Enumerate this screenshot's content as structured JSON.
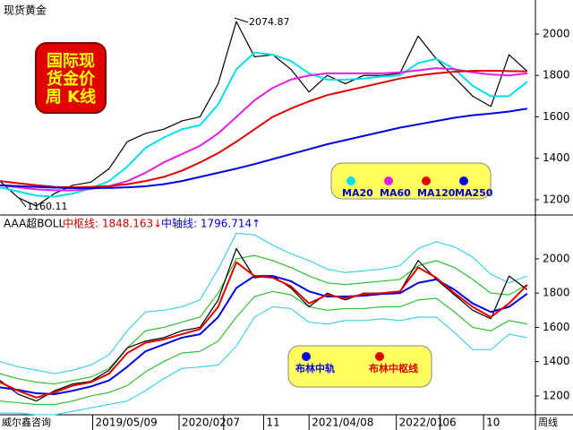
{
  "chart_data": [
    {
      "type": "line",
      "title": "现货黄金",
      "badge": [
        "国际现",
        "货金价",
        "周 K线"
      ],
      "annotations": [
        "2074.87",
        "1160.11"
      ],
      "xlim": [
        0,
        29.45
      ],
      "ylim": [
        1135,
        2121
      ],
      "yticks": [
        1200,
        1400,
        1600,
        1800,
        2000
      ],
      "series": [
        {
          "color": "#000000",
          "values": [
            1290,
            1210,
            1170,
            1230,
            1270,
            1285,
            1350,
            1480,
            1520,
            1540,
            1580,
            1600,
            1760,
            2060,
            1890,
            1900,
            1830,
            1720,
            1800,
            1760,
            1800,
            1800,
            1810,
            1990,
            1880,
            1790,
            1700,
            1650,
            1900,
            1820
          ]
        },
        {
          "name": "MA20",
          "color": "#00e0f0",
          "values": [
            1260,
            1240,
            1220,
            1215,
            1230,
            1255,
            1290,
            1360,
            1450,
            1500,
            1540,
            1560,
            1660,
            1830,
            1910,
            1900,
            1870,
            1810,
            1780,
            1780,
            1785,
            1795,
            1800,
            1860,
            1880,
            1830,
            1750,
            1700,
            1700,
            1770
          ]
        },
        {
          "name": "MA60",
          "color": "#e020e0",
          "values": [
            1270,
            1260,
            1250,
            1246,
            1245,
            1252,
            1265,
            1290,
            1330,
            1380,
            1420,
            1460,
            1520,
            1600,
            1680,
            1740,
            1780,
            1800,
            1810,
            1810,
            1810,
            1810,
            1815,
            1825,
            1835,
            1830,
            1815,
            1805,
            1800,
            1810
          ]
        },
        {
          "name": "MA120",
          "color": "#e00000",
          "values": [
            1290,
            1280,
            1270,
            1262,
            1260,
            1262,
            1266,
            1275,
            1290,
            1310,
            1340,
            1380,
            1425,
            1480,
            1540,
            1600,
            1640,
            1675,
            1705,
            1725,
            1745,
            1765,
            1785,
            1800,
            1810,
            1818,
            1822,
            1823,
            1821,
            1820
          ]
        },
        {
          "name": "MA250",
          "color": "#0000e0",
          "values": [
            1270,
            1266,
            1262,
            1258,
            1256,
            1256,
            1257,
            1260,
            1265,
            1275,
            1290,
            1310,
            1330,
            1350,
            1372,
            1396,
            1420,
            1444,
            1468,
            1488,
            1508,
            1528,
            1548,
            1564,
            1580,
            1596,
            1608,
            1616,
            1626,
            1640
          ]
        }
      ]
    },
    {
      "type": "line",
      "title": "AAA超BOLL",
      "headers": [
        "中枢线: 1848.163↓",
        "中轴线: 1796.714↑"
      ],
      "annotations": [
        "威尔鑫咨询",
        "周线"
      ],
      "xlim": [
        0,
        29.45
      ],
      "ylim": [
        1095,
        2162
      ],
      "yticks": [
        1200,
        1400,
        1600,
        1800,
        2000
      ],
      "xticks": [
        {
          "value": 5.1,
          "label": "2019/05/09"
        },
        {
          "value": 9.85,
          "label": "2020/02"
        },
        {
          "value": 12.3,
          "label": "07"
        },
        {
          "value": 14.5,
          "label": "11"
        },
        {
          "value": 17,
          "label": "2021/04/08"
        },
        {
          "value": 21.8,
          "label": "2022/01"
        },
        {
          "value": 24.2,
          "label": "06"
        },
        {
          "value": 26.6,
          "label": "10"
        }
      ],
      "series": [
        {
          "color": "#40d0f0",
          "values": [
            1400,
            1370,
            1350,
            1330,
            1350,
            1380,
            1440,
            1580,
            1690,
            1700,
            1720,
            1760,
            1940,
            2150,
            2140,
            2080,
            2030,
            1990,
            1940,
            1920,
            1930,
            1940,
            1960,
            2060,
            2100,
            2070,
            2010,
            1910,
            1860,
            1900
          ]
        },
        {
          "color": "#40d0f0",
          "values": [
            1100,
            1100,
            1090,
            1090,
            1110,
            1130,
            1150,
            1170,
            1230,
            1300,
            1360,
            1370,
            1380,
            1490,
            1660,
            1720,
            1710,
            1630,
            1620,
            1640,
            1640,
            1650,
            1640,
            1660,
            1660,
            1570,
            1470,
            1470,
            1560,
            1540
          ]
        },
        {
          "color": "#30c030",
          "values": [
            1330,
            1300,
            1280,
            1270,
            1290,
            1310,
            1360,
            1480,
            1580,
            1600,
            1630,
            1660,
            1800,
            2000,
            2020,
            1990,
            1950,
            1900,
            1860,
            1850,
            1860,
            1870,
            1880,
            1960,
            1990,
            1950,
            1880,
            1800,
            1790,
            1850
          ]
        },
        {
          "color": "#30c030",
          "values": [
            1170,
            1160,
            1150,
            1150,
            1170,
            1200,
            1220,
            1260,
            1340,
            1400,
            1450,
            1460,
            1520,
            1660,
            1780,
            1810,
            1790,
            1720,
            1700,
            1710,
            1710,
            1720,
            1720,
            1760,
            1770,
            1690,
            1600,
            1580,
            1640,
            1620
          ]
        },
        {
          "color": "#000000",
          "values": [
            1290,
            1210,
            1170,
            1230,
            1270,
            1285,
            1350,
            1480,
            1520,
            1540,
            1580,
            1600,
            1760,
            2060,
            1890,
            1900,
            1830,
            1720,
            1800,
            1760,
            1800,
            1800,
            1810,
            1990,
            1880,
            1790,
            1700,
            1650,
            1900,
            1820
          ]
        },
        {
          "name": "布林中轨",
          "color": "#0000e0",
          "values": [
            1250,
            1235,
            1215,
            1210,
            1230,
            1255,
            1290,
            1370,
            1460,
            1500,
            1540,
            1560,
            1660,
            1830,
            1900,
            1900,
            1870,
            1810,
            1780,
            1780,
            1785,
            1795,
            1800,
            1860,
            1880,
            1820,
            1740,
            1690,
            1720,
            1797
          ]
        },
        {
          "name": "布林中枢线",
          "color": "#e00000",
          "values": [
            1280,
            1230,
            1190,
            1220,
            1260,
            1280,
            1330,
            1450,
            1510,
            1530,
            1560,
            1590,
            1720,
            1980,
            1900,
            1890,
            1840,
            1740,
            1790,
            1770,
            1795,
            1800,
            1810,
            1950,
            1890,
            1800,
            1720,
            1660,
            1740,
            1848
          ]
        }
      ]
    }
  ]
}
